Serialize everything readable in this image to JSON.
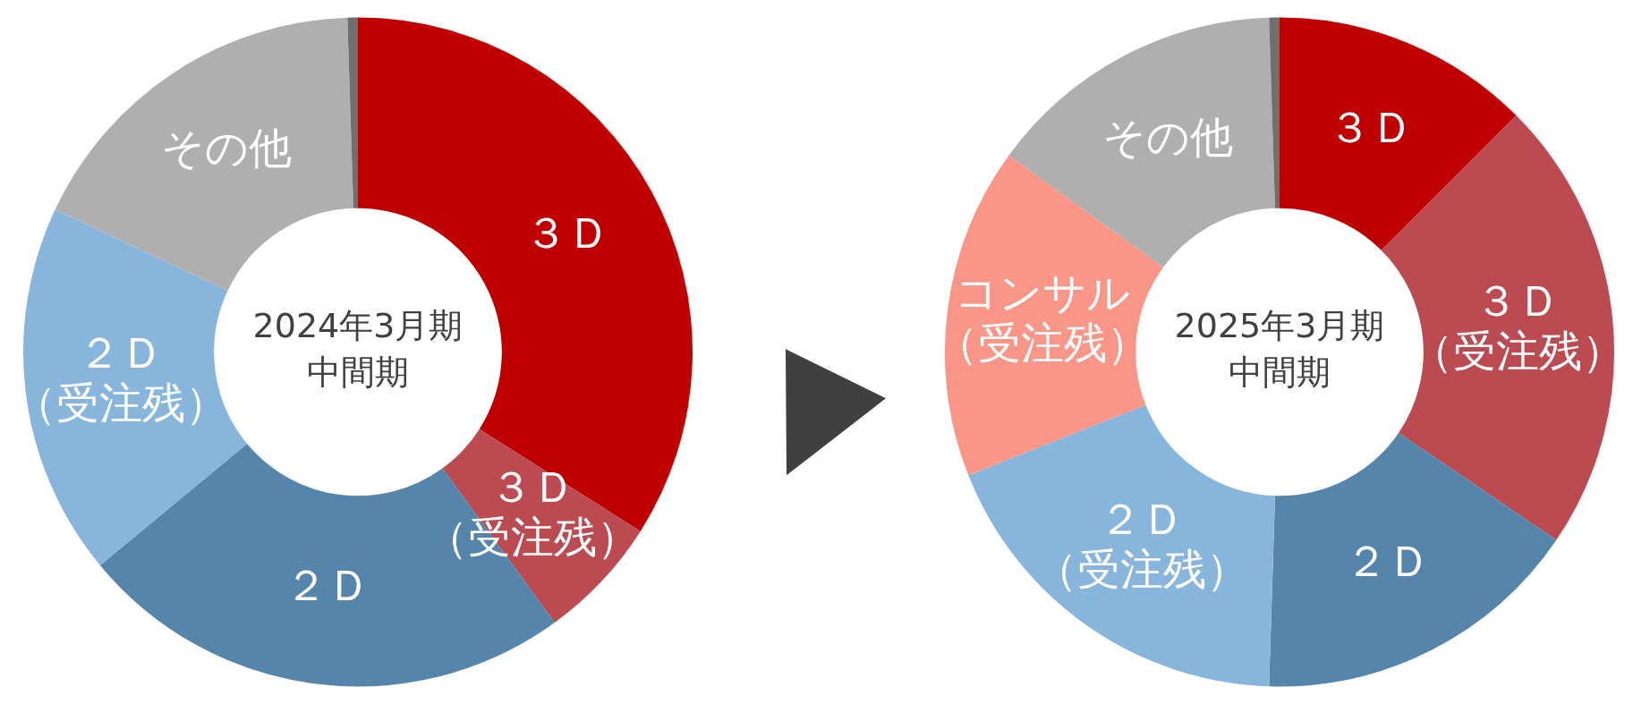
{
  "chart_data": [
    {
      "type": "donut",
      "title": "2024年3月期中間期",
      "categories": [
        "３Ｄ",
        "３Ｄ（受注残）",
        "２Ｄ",
        "２Ｄ（受注残）",
        "その他",
        null
      ],
      "values": [
        34,
        6,
        24,
        18,
        17.5,
        0.5
      ],
      "colors": [
        "#c00000",
        "#bc4b51",
        "#5585aa",
        "#87b5dc",
        "#afafaf",
        "#6f6f6f"
      ],
      "legend": false
    },
    {
      "type": "donut",
      "title": "2025年3月期中間期",
      "categories": [
        "３Ｄ",
        "３Ｄ（受注残）",
        "２Ｄ",
        "２Ｄ（受注残）",
        "コンサル（受注残）",
        "その他",
        null
      ],
      "values": [
        12.5,
        22,
        16,
        18.5,
        16,
        14.5,
        0.5
      ],
      "colors": [
        "#c00000",
        "#bc4b51",
        "#5585aa",
        "#87b5dc",
        "#fa9687",
        "#afafaf",
        "#6f6f6f"
      ],
      "legend": false
    }
  ]
}
